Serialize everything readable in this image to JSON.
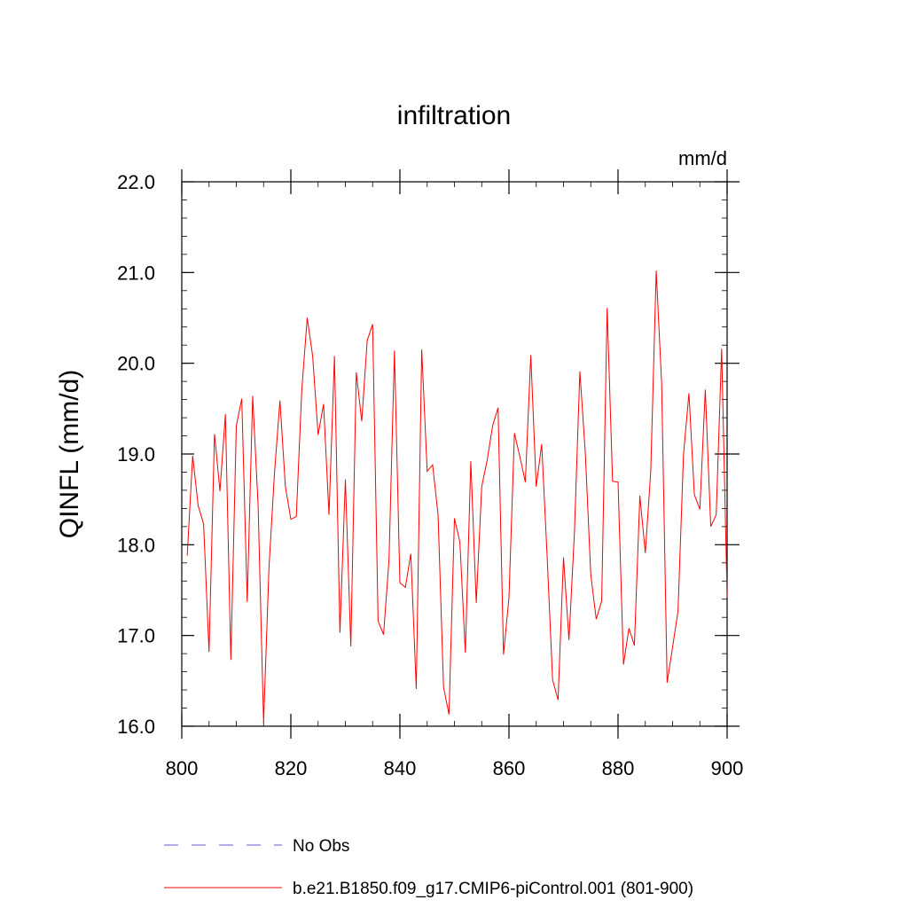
{
  "colors": {
    "series": "#ff0000",
    "obs": "#6a5acd",
    "axis": "#000000"
  },
  "chart_data": {
    "type": "line",
    "title": "infiltration",
    "units_label": "mm/d",
    "xlabel": "",
    "ylabel": "QINFL  (mm/d)",
    "xlim": [
      800,
      900
    ],
    "ylim": [
      16.0,
      22.0
    ],
    "grid": false,
    "x_ticks": [
      {
        "value": 800,
        "label": "800"
      },
      {
        "value": 820,
        "label": "820"
      },
      {
        "value": 840,
        "label": "840"
      },
      {
        "value": 860,
        "label": "860"
      },
      {
        "value": 880,
        "label": "880"
      },
      {
        "value": 900,
        "label": "900"
      }
    ],
    "y_ticks": [
      {
        "value": 16.0,
        "label": "16.0"
      },
      {
        "value": 17.0,
        "label": "17.0"
      },
      {
        "value": 18.0,
        "label": "18.0"
      },
      {
        "value": 19.0,
        "label": "19.0"
      },
      {
        "value": 20.0,
        "label": "20.0"
      },
      {
        "value": 21.0,
        "label": "21.0"
      },
      {
        "value": 22.0,
        "label": "22.0"
      }
    ],
    "x_start": 801,
    "series": [
      {
        "name": "b.e21.B1850.f09_g17.CMIP6-piControl.001 (801-900)",
        "style": "solid",
        "values": [
          17.88,
          18.98,
          18.43,
          18.23,
          16.82,
          19.22,
          18.59,
          19.44,
          16.73,
          19.31,
          19.61,
          17.37,
          19.64,
          18.43,
          16.04,
          17.76,
          18.79,
          19.59,
          18.64,
          18.28,
          18.31,
          19.7,
          20.5,
          20.08,
          19.21,
          19.55,
          18.33,
          20.08,
          17.03,
          18.72,
          16.88,
          19.9,
          19.36,
          20.25,
          20.43,
          17.16,
          17.01,
          17.83,
          20.14,
          17.58,
          17.53,
          17.9,
          16.41,
          20.15,
          18.81,
          18.88,
          18.33,
          16.43,
          16.13,
          18.29,
          18.03,
          16.81,
          18.92,
          17.36,
          18.64,
          18.93,
          19.31,
          19.51,
          16.79,
          17.42,
          19.23,
          18.97,
          18.69,
          20.09,
          18.64,
          19.11,
          17.87,
          16.51,
          16.29,
          17.86,
          16.95,
          18.13,
          19.91,
          19.01,
          17.67,
          17.18,
          17.38,
          20.61,
          18.7,
          18.69,
          16.68,
          17.08,
          16.89,
          18.54,
          17.91,
          18.81,
          21.02,
          19.77,
          16.48,
          16.87,
          17.27,
          18.99,
          19.67,
          18.55,
          18.39,
          19.71,
          18.2,
          18.33,
          20.16,
          17.42
        ]
      }
    ],
    "legend": [
      {
        "label": "No Obs",
        "style": "dashed",
        "color": "#6a5acd"
      },
      {
        "label": "b.e21.B1850.f09_g17.CMIP6-piControl.001 (801-900)",
        "style": "solid",
        "color": "#ff0000"
      }
    ],
    "legend_position": "bottom"
  }
}
